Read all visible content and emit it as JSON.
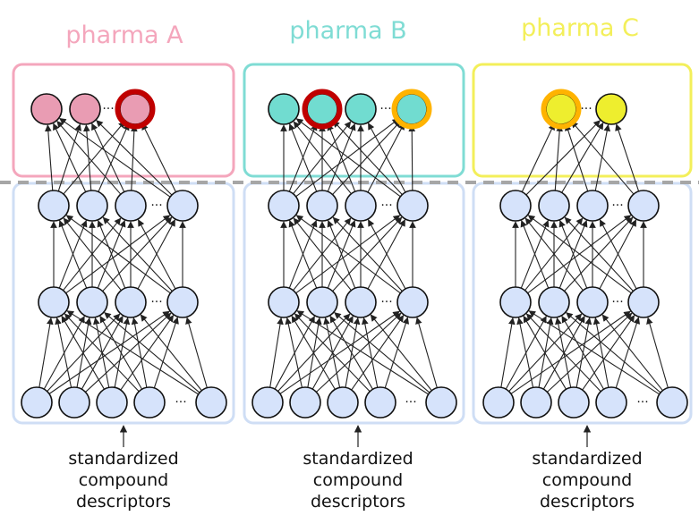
{
  "pharmas": [
    {
      "title": "pharma A",
      "color": "#f4a6bc",
      "node_fill": "#e99cb3",
      "output_count": 3,
      "highlighted_outputs": [
        {
          "index": 2,
          "ring": "red"
        }
      ]
    },
    {
      "title": "pharma B",
      "color": "#7fdcd4",
      "node_fill": "#71dcd0",
      "output_count": 4,
      "highlighted_outputs": [
        {
          "index": 1,
          "ring": "red"
        },
        {
          "index": 3,
          "ring": "orange"
        }
      ]
    },
    {
      "title": "pharma C",
      "color": "#f3ef5a",
      "node_fill": "#eeee2e",
      "output_count": 2,
      "highlighted_outputs": [
        {
          "index": 0,
          "ring": "orange"
        }
      ]
    }
  ],
  "hidden_layers": [
    {
      "label": "hidden-layer-2",
      "visible_nodes": 4,
      "has_ellipsis": true
    },
    {
      "label": "hidden-layer-1",
      "visible_nodes": 4,
      "has_ellipsis": true
    }
  ],
  "input_layer": {
    "visible_nodes": 5,
    "has_ellipsis": true
  },
  "ellipsis_text": "···",
  "input_caption": [
    "standardized",
    "compound",
    "descriptors"
  ],
  "colors": {
    "hidden_node_fill": "#d6e3fb",
    "shared_panel_border": "#cfdef5",
    "divider": "#a6a6a6",
    "ring_red": "#c00000",
    "ring_orange": "#ffb300",
    "edge": "#222222"
  }
}
